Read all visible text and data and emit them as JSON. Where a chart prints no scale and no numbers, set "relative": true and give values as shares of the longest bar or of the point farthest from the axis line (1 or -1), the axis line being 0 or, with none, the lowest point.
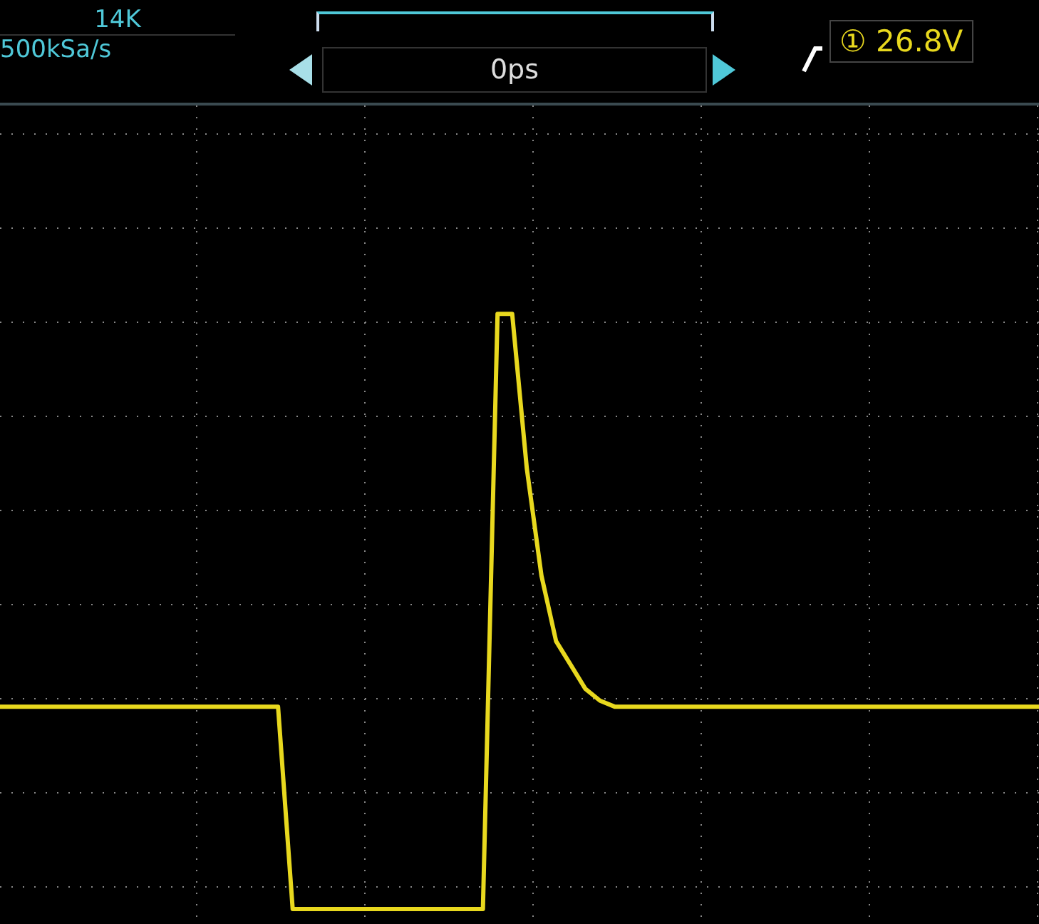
{
  "chart_data": {
    "type": "line",
    "relative": true,
    "grid": true,
    "marker": "none",
    "line_style": "solid",
    "annotations": [
      "14K",
      "500kSa/s",
      "0ps",
      "① 26.8V"
    ],
    "categories": [
      null,
      null,
      null,
      null,
      null,
      null,
      null,
      null,
      null,
      null,
      null,
      null,
      null,
      null,
      null,
      null,
      null,
      null,
      null,
      null,
      null,
      null,
      null,
      null,
      null,
      null,
      null,
      null,
      null,
      null,
      null,
      null,
      null,
      null,
      null,
      null,
      null,
      null,
      null,
      null,
      null,
      null,
      null,
      null,
      null,
      null,
      null,
      null,
      null,
      null,
      null,
      null,
      null,
      null,
      null,
      null,
      null,
      null,
      null,
      null,
      null,
      null,
      null,
      null,
      null,
      null,
      null,
      null,
      null,
      null,
      null,
      null
    ],
    "series": [
      {
        "color": "#e8d81e",
        "values": [
          0.34,
          0.34,
          0.34,
          0.34,
          0.34,
          0.34,
          0.34,
          0.34,
          0.34,
          0.34,
          0.34,
          0.34,
          0.34,
          0.34,
          0.34,
          0.34,
          0.34,
          0.34,
          0.34,
          0.34,
          0,
          0,
          0,
          0,
          0,
          0,
          0,
          0,
          0,
          0,
          0,
          0,
          0,
          0,
          1,
          1,
          0.74,
          0.56,
          0.45,
          0.41,
          0.37,
          0.35,
          0.34,
          0.34,
          0.34,
          0.34,
          0.34,
          0.34,
          0.34,
          0.34,
          0.34,
          0.34,
          0.34,
          0.34,
          0.34,
          0.34,
          0.34,
          0.34,
          0.34,
          0.34,
          0.34,
          0.34,
          0.34,
          0.34,
          0.34,
          0.34,
          0.34,
          0.34,
          0.34,
          0.34,
          0.34,
          0.34
        ]
      }
    ]
  }
}
